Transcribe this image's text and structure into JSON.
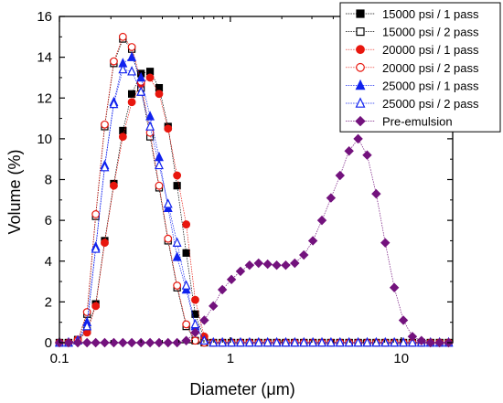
{
  "chart_data": {
    "type": "scatter",
    "xlabel": "Diameter (μm)",
    "ylabel": "Volume (%)",
    "xscale": "log",
    "xlim": [
      0.1,
      20
    ],
    "ylim": [
      0,
      16
    ],
    "x_ticks": [
      {
        "value": 0.1,
        "label": "0.1"
      },
      {
        "value": 1,
        "label": "1"
      },
      {
        "value": 10,
        "label": "10"
      }
    ],
    "y_ticks": [
      {
        "value": 0,
        "label": "0"
      },
      {
        "value": 2,
        "label": "2"
      },
      {
        "value": 4,
        "label": "4"
      },
      {
        "value": 6,
        "label": "6"
      },
      {
        "value": 8,
        "label": "8"
      },
      {
        "value": 10,
        "label": "10"
      },
      {
        "value": 12,
        "label": "12"
      },
      {
        "value": 14,
        "label": "14"
      },
      {
        "value": 16,
        "label": "16"
      }
    ],
    "grid": false,
    "legend_position": "top-right",
    "x": [
      0.1,
      0.113,
      0.128,
      0.145,
      0.163,
      0.184,
      0.208,
      0.235,
      0.265,
      0.3,
      0.339,
      0.383,
      0.432,
      0.488,
      0.552,
      0.623,
      0.704,
      0.795,
      0.898,
      1.015,
      1.146,
      1.295,
      1.463,
      1.653,
      1.867,
      2.109,
      2.382,
      2.691,
      3.04,
      3.434,
      3.879,
      4.382,
      4.95,
      5.592,
      6.317,
      7.136,
      8.061,
      9.106,
      10.287,
      11.62,
      13.127,
      14.829,
      16.751,
      18.923
    ],
    "series": [
      {
        "name": "15000 psi / 1 pass",
        "color": "#000000",
        "marker": "square-filled",
        "values": [
          0,
          0,
          0.15,
          0.6,
          1.9,
          5.0,
          7.8,
          10.4,
          12.2,
          13.2,
          13.3,
          12.5,
          10.6,
          7.7,
          4.4,
          1.4,
          0.2,
          0,
          0,
          0,
          0,
          0,
          0,
          0,
          0,
          0,
          0,
          0,
          0,
          0,
          0,
          0,
          0,
          0,
          0,
          0,
          0,
          0,
          0,
          0,
          0,
          0,
          0,
          0
        ]
      },
      {
        "name": "15000 psi / 2 pass",
        "color": "#000000",
        "marker": "square-open",
        "values": [
          0,
          0,
          0.1,
          1.4,
          6.2,
          10.6,
          13.7,
          14.9,
          14.4,
          12.5,
          10.1,
          7.6,
          5.0,
          2.7,
          0.8,
          0.1,
          0,
          0,
          0,
          0,
          0,
          0,
          0,
          0,
          0,
          0,
          0,
          0,
          0,
          0,
          0,
          0,
          0,
          0,
          0,
          0,
          0,
          0,
          0,
          0,
          0,
          0,
          0,
          0
        ]
      },
      {
        "name": "20000 psi / 1 pass",
        "color": "#e8170e",
        "marker": "circle-filled",
        "values": [
          0,
          0,
          0.15,
          0.5,
          1.8,
          4.9,
          7.7,
          10.1,
          11.8,
          12.7,
          13.0,
          12.2,
          10.5,
          8.2,
          5.8,
          2.1,
          0.3,
          0,
          0,
          0,
          0,
          0,
          0,
          0,
          0,
          0,
          0,
          0,
          0,
          0,
          0,
          0,
          0,
          0,
          0,
          0,
          0,
          0,
          0,
          0,
          0,
          0,
          0,
          0
        ]
      },
      {
        "name": "20000 psi / 2 pass",
        "color": "#e8170e",
        "marker": "circle-open",
        "values": [
          0,
          0,
          0.1,
          1.5,
          6.3,
          10.7,
          13.8,
          15.0,
          14.5,
          12.8,
          10.3,
          7.7,
          5.1,
          2.8,
          0.9,
          0.1,
          0,
          0,
          0,
          0,
          0,
          0,
          0,
          0,
          0,
          0,
          0,
          0,
          0,
          0,
          0,
          0,
          0,
          0,
          0,
          0,
          0,
          0,
          0,
          0,
          0,
          0,
          0,
          0
        ]
      },
      {
        "name": "25000 psi / 1 pass",
        "color": "#1122ee",
        "marker": "triangle-filled",
        "values": [
          0,
          0,
          0.1,
          1.0,
          4.7,
          8.7,
          11.8,
          13.7,
          14.0,
          13.0,
          11.1,
          9.1,
          6.6,
          4.2,
          2.6,
          0.8,
          0.1,
          0,
          0,
          0,
          0,
          0,
          0,
          0,
          0,
          0,
          0,
          0,
          0,
          0,
          0,
          0,
          0,
          0,
          0,
          0,
          0,
          0,
          0,
          0,
          0,
          0,
          0,
          0
        ]
      },
      {
        "name": "25000 psi / 2 pass",
        "color": "#1122ee",
        "marker": "triangle-open",
        "values": [
          0,
          0,
          0.1,
          0.8,
          4.6,
          8.6,
          11.7,
          13.4,
          13.3,
          12.3,
          10.6,
          8.7,
          6.8,
          4.9,
          2.8,
          0.9,
          0.1,
          0,
          0,
          0,
          0,
          0,
          0,
          0,
          0,
          0,
          0,
          0,
          0,
          0,
          0,
          0,
          0,
          0,
          0,
          0,
          0,
          0,
          0,
          0,
          0,
          0,
          0,
          0
        ]
      },
      {
        "name": "Pre-emulsion",
        "color": "#73127d",
        "marker": "diamond-filled",
        "values": [
          0,
          0,
          0,
          0,
          0,
          0,
          0,
          0,
          0,
          0,
          0,
          0,
          0,
          0,
          0.1,
          0.5,
          1.1,
          1.8,
          2.6,
          3.1,
          3.5,
          3.8,
          3.9,
          3.85,
          3.8,
          3.8,
          3.9,
          4.3,
          5.0,
          6.0,
          7.1,
          8.2,
          9.4,
          10.0,
          9.2,
          7.3,
          4.9,
          2.7,
          1.1,
          0.3,
          0.1,
          0,
          0,
          0
        ]
      }
    ]
  }
}
